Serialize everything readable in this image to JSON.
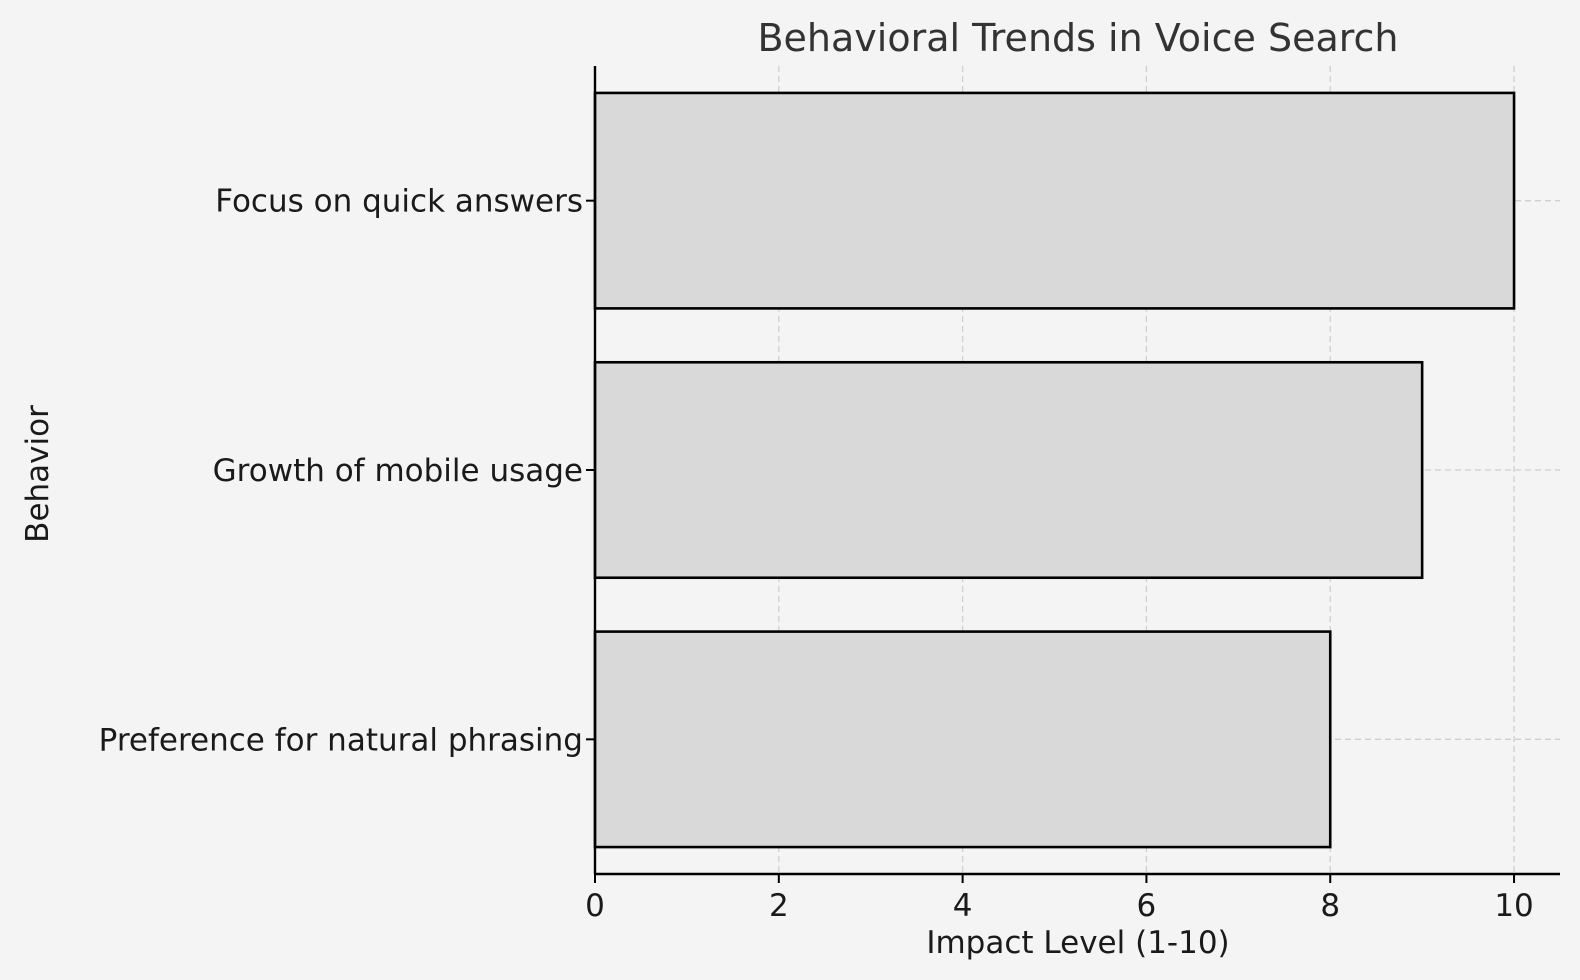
{
  "chart_data": {
    "type": "bar",
    "orientation": "horizontal",
    "title": "Behavioral Trends in Voice Search",
    "xlabel": "Impact Level (1-10)",
    "ylabel": "Behavior",
    "categories": [
      "Focus on quick answers",
      "Growth of mobile usage",
      "Preference for natural phrasing"
    ],
    "values": [
      10,
      9,
      8
    ],
    "xticks": [
      "0",
      "2",
      "4",
      "6",
      "8",
      "10"
    ],
    "xlim": [
      0,
      10.5
    ],
    "grid": true,
    "bar_color": "#d9d9d9",
    "edge_color": "#000000",
    "background": "#f4f4f4"
  }
}
